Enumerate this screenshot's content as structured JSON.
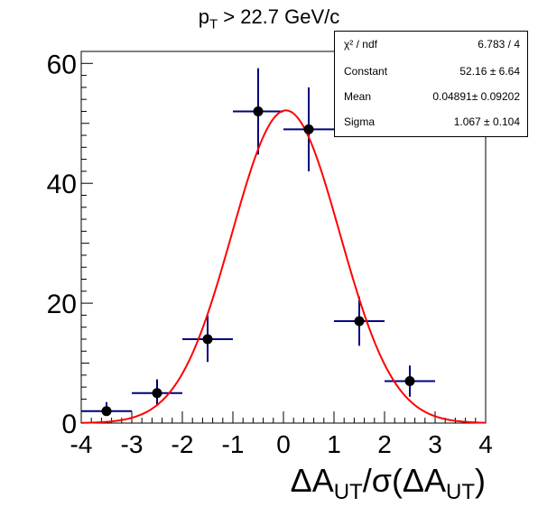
{
  "title": {
    "main": "p",
    "sub": "T",
    "rest": " > 22.7 GeV/c"
  },
  "xlabel": {
    "p1": "ΔA",
    "s1": "UT",
    "p2": "/σ(ΔA",
    "s2": "UT",
    "p3": ")"
  },
  "stats": [
    {
      "key": "χ² / ndf",
      "value": "6.783 / 4"
    },
    {
      "key": "Constant",
      "value": "52.16 ± 6.64"
    },
    {
      "key": "Mean",
      "value": "0.04891± 0.09202"
    },
    {
      "key": "Sigma",
      "value": "1.067 ± 0.104"
    }
  ],
  "colors": {
    "fit": "#ff0000",
    "errorbar": "#000080",
    "marker": "#000000"
  },
  "chart_data": {
    "type": "scatter",
    "xlim": [
      -4,
      4
    ],
    "ylim": [
      0,
      62
    ],
    "x_ticks": [
      -4,
      -3,
      -2,
      -1,
      0,
      1,
      2,
      3,
      4
    ],
    "y_ticks": [
      0,
      20,
      40,
      60
    ],
    "points": [
      {
        "x": -3.5,
        "y": 2,
        "xerr": 0.5,
        "ylo": 1.4,
        "yhi": 3.5
      },
      {
        "x": -2.5,
        "y": 5,
        "xerr": 0.5,
        "ylo": 2.9,
        "yhi": 7.3
      },
      {
        "x": -1.5,
        "y": 14,
        "xerr": 0.5,
        "ylo": 10.2,
        "yhi": 17.9
      },
      {
        "x": -0.5,
        "y": 52,
        "xerr": 0.5,
        "ylo": 44.8,
        "yhi": 59.2
      },
      {
        "x": 0.5,
        "y": 49,
        "xerr": 0.5,
        "ylo": 42.0,
        "yhi": 56.0
      },
      {
        "x": 1.5,
        "y": 17,
        "xerr": 0.5,
        "ylo": 12.9,
        "yhi": 21.1
      },
      {
        "x": 2.5,
        "y": 7,
        "xerr": 0.5,
        "ylo": 4.4,
        "yhi": 9.6
      }
    ],
    "fit": {
      "type": "gaussian",
      "constant": 52.16,
      "mean": 0.04891,
      "sigma": 1.067
    }
  }
}
